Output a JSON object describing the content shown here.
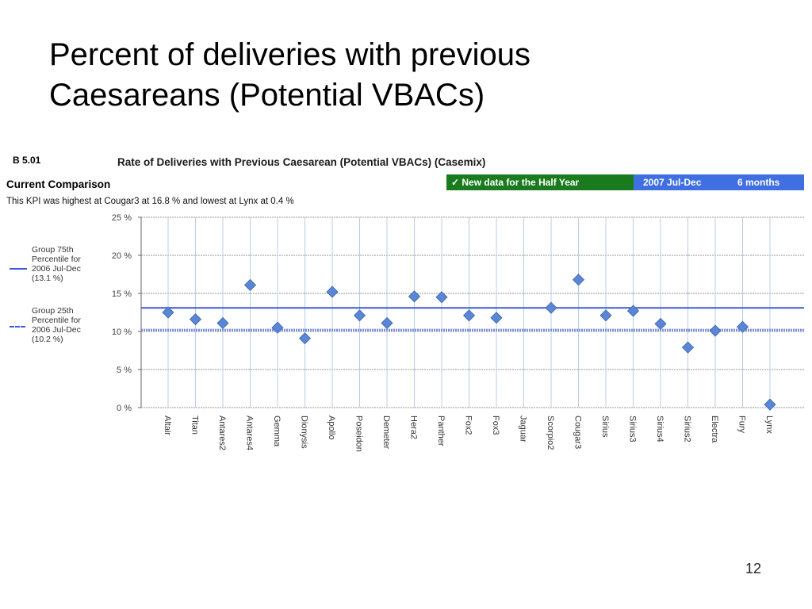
{
  "slide": {
    "title_line1": "Percent of deliveries with previous",
    "title_line2": "Caesareans (Potential VBACs)",
    "page_number": "12"
  },
  "report": {
    "code": "B 5.01",
    "title": "Rate of Deliveries with Previous Caesarean (Potential VBACs) (Casemix)",
    "current_comparison": "Current Comparison",
    "kpi_note": "This KPI was highest at Cougar3 at 16.8 % and lowest at Lynx at 0.4 %",
    "banner_new_data": "✓ New data for the Half Year",
    "banner_period": "2007 Jul-Dec",
    "banner_months": "6 months",
    "colors": {
      "green": "#1a7a1e",
      "blue": "#3f6fe0",
      "marker": "#5a86d6",
      "line75": "#3b5bd6",
      "line25": "#5a78e0"
    }
  },
  "legend": {
    "p75": [
      "Group 75th",
      "Percentile for",
      "2006 Jul-Dec",
      "(13.1 %)"
    ],
    "p25": [
      "Group 25th",
      "Percentile for",
      "2006 Jul-Dec",
      "(10.2 %)"
    ]
  },
  "chart_data": {
    "type": "scatter",
    "categories": [
      "Altair",
      "Titan",
      "Antares2",
      "Antares4",
      "Gemma",
      "Dionysis",
      "Apollo",
      "Poseidon",
      "Demeter",
      "Hera2",
      "Panther",
      "Fox2",
      "Fox3",
      "Jaguar",
      "Scorpio2",
      "Cougar3",
      "Sirius",
      "Sirius3",
      "Sirius4",
      "Sirius2",
      "Electra",
      "Fury",
      "Lynx"
    ],
    "values": [
      12.5,
      11.6,
      11.1,
      16.1,
      10.5,
      9.1,
      15.2,
      12.1,
      11.1,
      14.6,
      14.5,
      12.1,
      11.8,
      null,
      13.1,
      16.8,
      12.1,
      12.7,
      11.0,
      7.9,
      10.1,
      10.6,
      0.4
    ],
    "reference_lines": [
      {
        "name": "Group 75th Percentile for 2006 Jul-Dec",
        "value": 13.1,
        "style": "solid"
      },
      {
        "name": "Group 25th Percentile for 2006 Jul-Dec",
        "value": 10.2,
        "style": "dashed"
      }
    ],
    "yticks": [
      "0 %",
      "5 %",
      "10 %",
      "15 %",
      "20 %",
      "25 %"
    ],
    "ylim": [
      0,
      25
    ],
    "grid": true,
    "legend_position": "left"
  }
}
